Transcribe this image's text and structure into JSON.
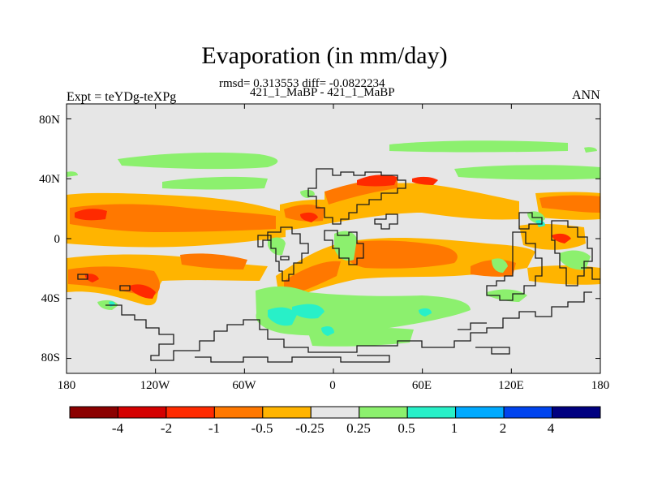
{
  "title": "Evaporation (in mm/day)",
  "stats": "rmsd= 0.313553 diff= -0.0822234",
  "subtitle": "421_1_MaBP - 421_1_MaBP",
  "left_label": "Expt = teYDg-teXPg",
  "right_label": "ANN",
  "axes": {
    "lat_ticks": [
      "80N",
      "40N",
      "0",
      "40S",
      "80S"
    ],
    "lon_ticks": [
      "180",
      "120W",
      "60W",
      "0",
      "60E",
      "120E",
      "180"
    ]
  },
  "colorbar": {
    "colors": [
      "#8b0000",
      "#d40000",
      "#ff2a00",
      "#ff7800",
      "#ffb400",
      "#e6e6e6",
      "#8cf06e",
      "#28f0c8",
      "#00aaff",
      "#0044ee",
      "#000080"
    ],
    "labels": [
      "-4",
      "-2",
      "-1",
      "-0.5",
      "-0.25",
      "0.25",
      "0.5",
      "1",
      "2",
      "4"
    ]
  },
  "field": {
    "background": "#e6e6e6",
    "coastline": "#1a1a1a"
  }
}
